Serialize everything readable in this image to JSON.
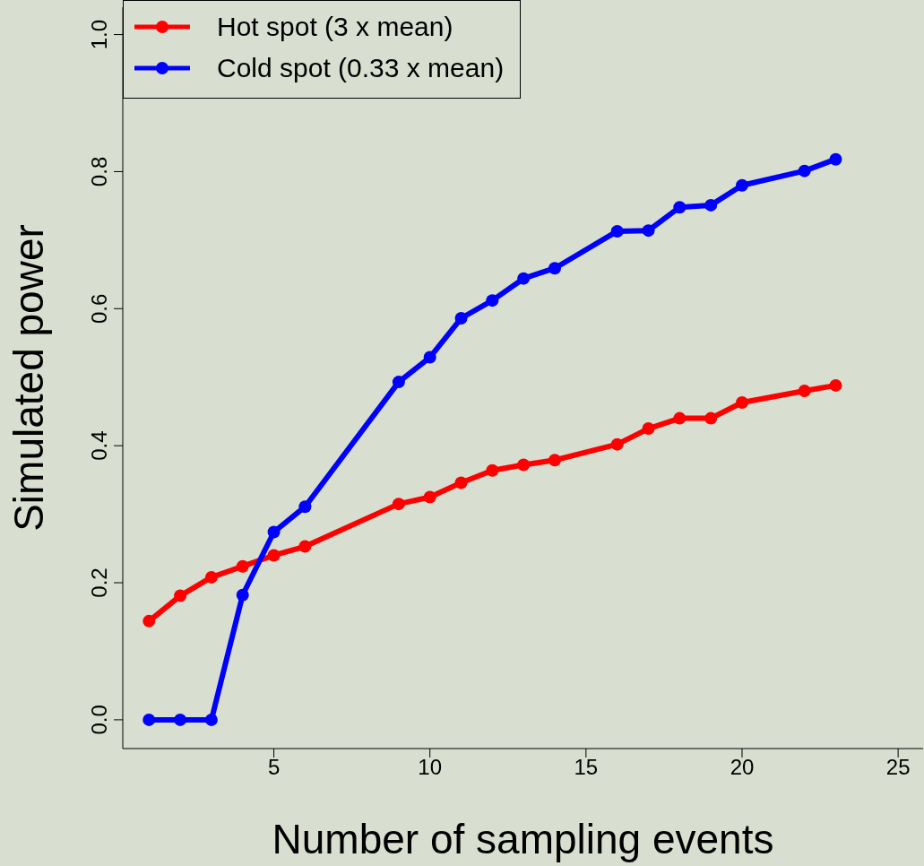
{
  "chart_data": {
    "type": "line",
    "xlabel": "Number of sampling events",
    "ylabel": "Simulated power",
    "xlim": [
      0.16,
      25.8
    ],
    "xticks": [
      5,
      10,
      15,
      20,
      25
    ],
    "ylim": [
      -0.042,
      1.04
    ],
    "yticks": [
      {
        "value": 0,
        "label": "0.0"
      },
      {
        "value": 0.2,
        "label": "0.2"
      },
      {
        "value": 0.4,
        "label": "0.4"
      },
      {
        "value": 0.6,
        "label": "0.6"
      },
      {
        "value": 0.8,
        "label": "0.8"
      },
      {
        "value": 1,
        "label": "1.0"
      }
    ],
    "grid": false,
    "legend": "top left",
    "marker": "circle",
    "line_style": "solid",
    "series": [
      {
        "name": "Hot spot (3 x mean)",
        "color": "#ff0000",
        "x": [
          1,
          2,
          3,
          4,
          5,
          6,
          9,
          10,
          11,
          12,
          13,
          14,
          16,
          17,
          18,
          19,
          20,
          22,
          23
        ],
        "values": [
          0.144,
          0.181,
          0.208,
          0.224,
          0.24,
          0.253,
          0.315,
          0.325,
          0.346,
          0.364,
          0.372,
          0.379,
          0.402,
          0.425,
          0.44,
          0.44,
          0.463,
          0.48,
          0.488
        ]
      },
      {
        "name": "Cold spot (0.33 x mean)",
        "color": "#0000ff",
        "x": [
          1,
          2,
          3,
          4,
          5,
          6,
          9,
          10,
          11,
          12,
          13,
          14,
          16,
          17,
          18,
          19,
          20,
          22,
          23
        ],
        "values": [
          0,
          0,
          0,
          0.182,
          0.274,
          0.311,
          0.493,
          0.529,
          0.586,
          0.612,
          0.644,
          0.659,
          0.713,
          0.714,
          0.748,
          0.751,
          0.78,
          0.801,
          0.818
        ]
      }
    ]
  }
}
